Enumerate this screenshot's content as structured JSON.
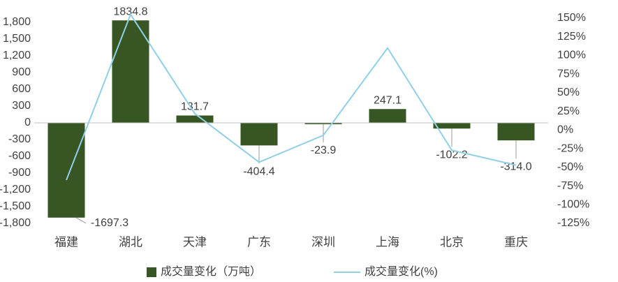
{
  "chart_data": {
    "type": "bar-line",
    "categories": [
      "福建",
      "湖北",
      "天津",
      "广东",
      "深圳",
      "上海",
      "北京",
      "重庆"
    ],
    "series": [
      {
        "name": "成交量变化（万吨）",
        "color": "#375623",
        "type": "bar",
        "values": [
          -1697.3,
          1834.8,
          131.7,
          -404.4,
          -23.9,
          247.1,
          -102.2,
          -314.0
        ],
        "value_labels": [
          "-1697.3",
          "1834.8",
          "131.7",
          "-404.4",
          "-23.9",
          "247.1",
          "-102.2",
          "-314.0"
        ]
      },
      {
        "name": "成交量变化(%)",
        "color": "#8fd0e8",
        "type": "line",
        "axis": "y2",
        "values": [
          -67,
          155,
          22,
          -43,
          -7,
          110,
          -27,
          -47
        ]
      }
    ],
    "ylim": [
      -1800,
      1875
    ],
    "yticks": [
      {
        "value": 1800,
        "label": "1,800"
      },
      {
        "value": 1500,
        "label": "1,500"
      },
      {
        "value": 1200,
        "label": "1,200"
      },
      900,
      600,
      300,
      0,
      -300,
      -600,
      -900,
      {
        "value": -1200,
        "label": "-1,200"
      },
      {
        "value": -1500,
        "label": "-1,500"
      },
      {
        "value": -1800,
        "label": "-1,800"
      }
    ],
    "y2lim": [
      -125,
      150
    ],
    "y2ticks": [
      {
        "value": 150,
        "label": "150%"
      },
      {
        "value": 125,
        "label": "125%"
      },
      {
        "value": 100,
        "label": "100%"
      },
      {
        "value": 75,
        "label": "75%"
      },
      {
        "value": 50,
        "label": "50%"
      },
      {
        "value": 25,
        "label": "25%"
      },
      {
        "value": 0,
        "label": "0%"
      },
      {
        "value": -25,
        "label": "-25%"
      },
      {
        "value": -50,
        "label": "-50%"
      },
      {
        "value": -75,
        "label": "-75%"
      },
      {
        "value": -100,
        "label": "-100%"
      },
      {
        "value": -125,
        "label": "-125%"
      }
    ],
    "legend": "bottom"
  }
}
